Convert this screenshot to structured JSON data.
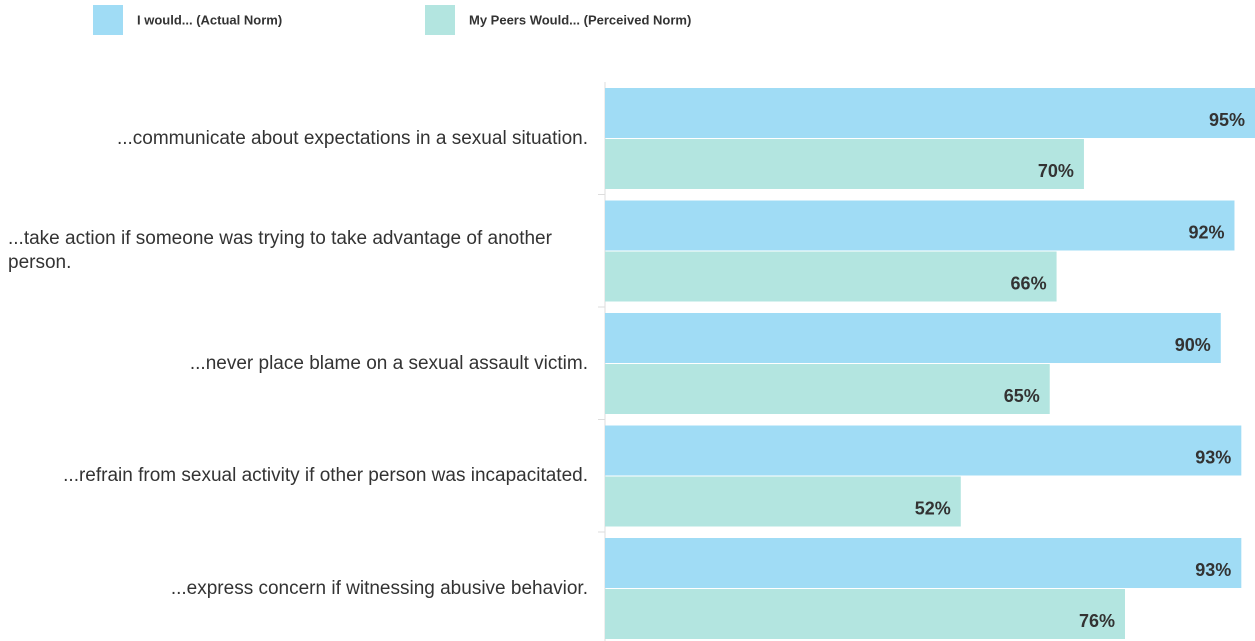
{
  "chart_data": {
    "type": "bar",
    "orientation": "horizontal",
    "categories": [
      "...communicate about expectations in a sexual situation.",
      "...take action if someone was trying to take advantage of another person.",
      "...never place blame on a sexual assault victim.",
      "...refrain from sexual activity if other person was incapacitated.",
      "...express concern if witnessing abusive behavior."
    ],
    "series": [
      {
        "name": "I would... (Actual Norm)",
        "color": "#a0dcf5",
        "values": [
          95,
          92,
          90,
          93,
          93
        ],
        "value_labels": [
          "95%",
          "92%",
          "90%",
          "93%",
          "93%"
        ]
      },
      {
        "name": "My Peers Would... (Perceived Norm)",
        "color": "#b3e5e0",
        "values": [
          70,
          66,
          65,
          52,
          76
        ],
        "value_labels": [
          "70%",
          "66%",
          "65%",
          "52%",
          "76%"
        ]
      }
    ]
  }
}
